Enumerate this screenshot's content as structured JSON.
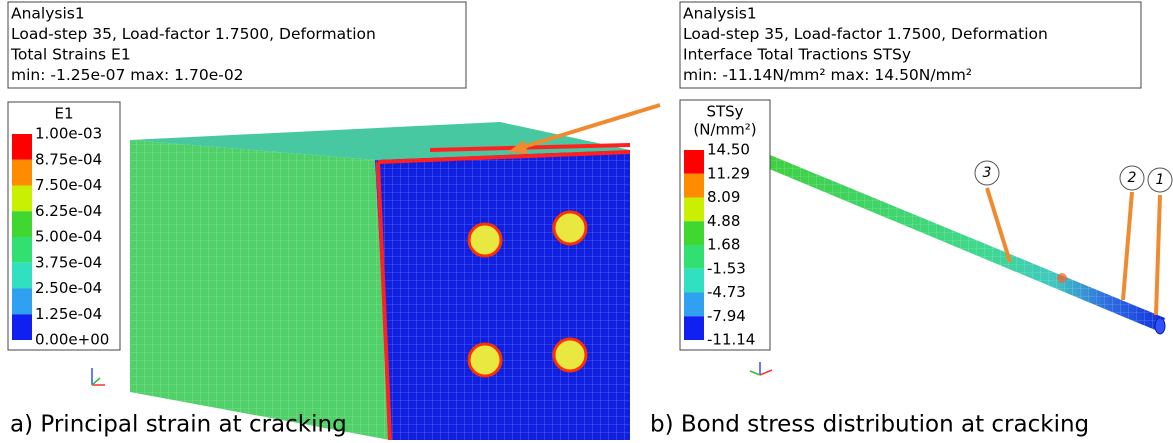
{
  "panels": [
    {
      "info": [
        "Analysis1",
        "Load-step 35, Load-factor 1.7500, Deformation",
        "Total Strains E1",
        "min: -1.25e-07 max: 1.70e-02"
      ],
      "legend": {
        "title": [
          "E1"
        ],
        "labels": [
          "1.00e-03",
          "8.75e-04",
          "7.50e-04",
          "6.25e-04",
          "5.00e-04",
          "3.75e-04",
          "2.50e-04",
          "1.25e-04",
          "0.00e+00"
        ],
        "colors": [
          "#ff0000",
          "#ff8c00",
          "#c8f000",
          "#40d830",
          "#30e070",
          "#30e0c0",
          "#30a0f0",
          "#1020f0"
        ]
      },
      "caption": "a) Principal strain at cracking"
    },
    {
      "info": [
        "Analysis1",
        "Load-step 35, Load-factor 1.7500, Deformation",
        "Interface Total Tractions STSy",
        "min: -11.14N/mm² max: 14.50N/mm²"
      ],
      "legend": {
        "title": [
          "STSy",
          "(N/mm²)"
        ],
        "labels": [
          "14.50",
          "11.29",
          "8.09",
          "4.88",
          "1.68",
          "-1.53",
          "-4.73",
          "-7.94",
          "-11.14"
        ],
        "colors": [
          "#ff0000",
          "#ff8c00",
          "#c8f000",
          "#40d830",
          "#30e070",
          "#30e0c0",
          "#30a0f0",
          "#1020f0"
        ]
      },
      "callouts": [
        "3",
        "2",
        "1"
      ],
      "caption": "b) Bond stress distribution at cracking"
    }
  ]
}
